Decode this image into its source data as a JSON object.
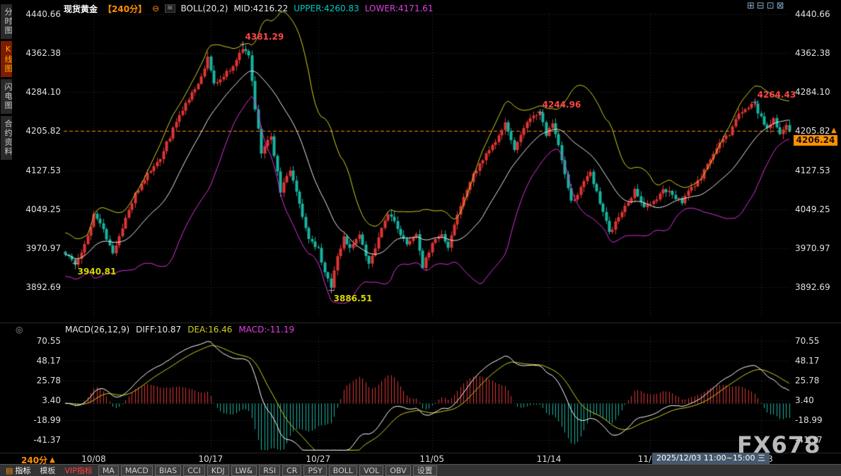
{
  "header": {
    "symbol": "现货黄金",
    "period": "【240分】",
    "indicator": "BOLL(20,2)",
    "mid": "MID:4216.22",
    "upper": "UPPER:4260.83",
    "lower": "LOWER:4171.61"
  },
  "icons": {
    "collapse": "⊖",
    "indicator": "≋",
    "pane_toggle": "◎",
    "indicator_list": "▤"
  },
  "window_icons": [
    {
      "name": "layout-quad-icon",
      "glyph": "⊞"
    },
    {
      "name": "layout-rows-icon",
      "glyph": "⊟"
    },
    {
      "name": "layout-columns-icon",
      "glyph": "⊡"
    },
    {
      "name": "layout-single-icon",
      "glyph": "⊠"
    }
  ],
  "sidebar": {
    "tabs": [
      {
        "label": "分时图",
        "active": false
      },
      {
        "label": "K线图",
        "active": true
      },
      {
        "label": "闪电图",
        "active": false
      },
      {
        "label": "合约资料",
        "active": false
      }
    ]
  },
  "price_badge": "4206.24",
  "price_arrow": "▲",
  "macd_header": {
    "name": "MACD(26,12,9)",
    "diff": "DIFF:10.87",
    "dea": "DEA:16.46",
    "macd": "MACD:-11.19"
  },
  "bottom": {
    "period_label": "240分",
    "period_arrow": "▲",
    "date_highlight": "2025/12/03 11:00~15:00 三",
    "toolbar": [
      {
        "label": "指标",
        "name": "indicators-tab",
        "style": "primary"
      },
      {
        "label": "模板",
        "name": "templates-tab",
        "style": "tab"
      },
      {
        "label": "VIP指标",
        "name": "vip-indicators-tab",
        "style": "vip"
      },
      {
        "label": "MA",
        "name": "ma",
        "style": "box"
      },
      {
        "label": "MACD",
        "name": "macd",
        "style": "box"
      },
      {
        "label": "BIAS",
        "name": "bias",
        "style": "box"
      },
      {
        "label": "CCI",
        "name": "cci",
        "style": "box"
      },
      {
        "label": "KDJ",
        "name": "kdj",
        "style": "box"
      },
      {
        "label": "LW&",
        "name": "lwr",
        "style": "box"
      },
      {
        "label": "RSI",
        "name": "rsi",
        "style": "box"
      },
      {
        "label": "CR",
        "name": "cr",
        "style": "box"
      },
      {
        "label": "PSY",
        "name": "psy",
        "style": "box"
      },
      {
        "label": "BOLL",
        "name": "boll",
        "style": "box"
      },
      {
        "label": "VOL",
        "name": "vol",
        "style": "box"
      },
      {
        "label": "OBV",
        "name": "obv",
        "style": "box"
      },
      {
        "label": "设置",
        "name": "settings",
        "style": "box"
      }
    ]
  },
  "watermark": "FX678",
  "chart_data": {
    "type": "candlestick",
    "symbol": "现货黄金",
    "period": "240分",
    "price_ticks": [
      4440.66,
      4362.38,
      4284.1,
      4205.82,
      4127.53,
      4049.25,
      3970.97,
      3892.69
    ],
    "macd_ticks": [
      70.55,
      48.17,
      25.78,
      3.4,
      -18.99,
      -41.37
    ],
    "x_ticks": [
      {
        "label": "10/08",
        "bar": 9
      },
      {
        "label": "10/17",
        "bar": 46
      },
      {
        "label": "10/27",
        "bar": 80
      },
      {
        "label": "11/05",
        "bar": 116
      },
      {
        "label": "11/14",
        "bar": 153
      },
      {
        "label": "11/24",
        "bar": 185
      },
      {
        "label": "12/03",
        "bar": 220
      }
    ],
    "bars": 230,
    "last_close": 4206.24,
    "dashed_level": 4205.82,
    "boll": {
      "period": 20,
      "width": 2,
      "mid": 4216.22,
      "upper": 4260.83,
      "lower": 4171.61
    },
    "macd": {
      "params": [
        26,
        12,
        9
      ],
      "diff": 10.87,
      "dea": 16.46,
      "macd": -11.19
    },
    "anchors": [
      [
        0,
        3958
      ],
      [
        3,
        3942
      ],
      [
        6,
        3975
      ],
      [
        9,
        4040
      ],
      [
        12,
        4008
      ],
      [
        15,
        3962
      ],
      [
        18,
        4012
      ],
      [
        22,
        4078
      ],
      [
        26,
        4118
      ],
      [
        30,
        4152
      ],
      [
        34,
        4210
      ],
      [
        38,
        4262
      ],
      [
        42,
        4300
      ],
      [
        45,
        4352
      ],
      [
        47,
        4300
      ],
      [
        50,
        4318
      ],
      [
        53,
        4338
      ],
      [
        56,
        4375
      ],
      [
        58,
        4355
      ],
      [
        60,
        4250
      ],
      [
        62,
        4165
      ],
      [
        65,
        4195
      ],
      [
        68,
        4085
      ],
      [
        71,
        4130
      ],
      [
        74,
        4058
      ],
      [
        77,
        3992
      ],
      [
        80,
        3968
      ],
      [
        82,
        3925
      ],
      [
        84,
        3895
      ],
      [
        86,
        3952
      ],
      [
        88,
        3992
      ],
      [
        90,
        3968
      ],
      [
        93,
        4002
      ],
      [
        96,
        3938
      ],
      [
        99,
        3992
      ],
      [
        102,
        4042
      ],
      [
        105,
        4012
      ],
      [
        108,
        3978
      ],
      [
        111,
        3995
      ],
      [
        113,
        3932
      ],
      [
        116,
        3982
      ],
      [
        119,
        4002
      ],
      [
        121,
        3968
      ],
      [
        124,
        4042
      ],
      [
        127,
        4092
      ],
      [
        130,
        4130
      ],
      [
        133,
        4160
      ],
      [
        136,
        4182
      ],
      [
        139,
        4222
      ],
      [
        142,
        4172
      ],
      [
        145,
        4212
      ],
      [
        148,
        4238
      ],
      [
        150,
        4242
      ],
      [
        152,
        4198
      ],
      [
        154,
        4222
      ],
      [
        156,
        4178
      ],
      [
        158,
        4122
      ],
      [
        160,
        4062
      ],
      [
        163,
        4092
      ],
      [
        166,
        4122
      ],
      [
        169,
        4062
      ],
      [
        172,
        4002
      ],
      [
        175,
        4032
      ],
      [
        178,
        4062
      ],
      [
        180,
        4088
      ],
      [
        183,
        4052
      ],
      [
        186,
        4062
      ],
      [
        189,
        4092
      ],
      [
        192,
        4078
      ],
      [
        195,
        4062
      ],
      [
        198,
        4092
      ],
      [
        201,
        4112
      ],
      [
        204,
        4152
      ],
      [
        207,
        4182
      ],
      [
        210,
        4202
      ],
      [
        213,
        4242
      ],
      [
        216,
        4256
      ],
      [
        218,
        4258
      ],
      [
        220,
        4232
      ],
      [
        222,
        4212
      ],
      [
        224,
        4228
      ],
      [
        226,
        4202
      ],
      [
        228,
        4216
      ],
      [
        229,
        4206.24
      ]
    ],
    "extremes": [
      {
        "bar": 3,
        "side": "low",
        "value": 3940.81
      },
      {
        "bar": 56,
        "side": "high",
        "value": 4381.29
      },
      {
        "bar": 84,
        "side": "low",
        "value": 3886.51
      },
      {
        "bar": 150,
        "side": "high",
        "value": 4244.96
      },
      {
        "bar": 218,
        "side": "high",
        "value": 4264.43
      }
    ],
    "annotations": [
      {
        "text": "4381.29",
        "bar": 56,
        "value": 4381.29,
        "color": "#ff4545",
        "pos": "above"
      },
      {
        "text": "3940.81",
        "bar": 3,
        "value": 3940.81,
        "color": "#d6d600",
        "pos": "below"
      },
      {
        "text": "3886.51",
        "bar": 84,
        "value": 3886.51,
        "color": "#d6d600",
        "pos": "below"
      },
      {
        "text": "4244.96",
        "bar": 150,
        "value": 4244.96,
        "color": "#ff4545",
        "pos": "above"
      },
      {
        "text": "4264.43",
        "bar": 218,
        "value": 4264.43,
        "color": "#ff4545",
        "pos": "above"
      }
    ],
    "colors": {
      "background": "#000000",
      "up": "#e03535",
      "down": "#17b3a0",
      "boll_upper": "#cfcf20",
      "boll_mid": "#e8e8e8",
      "boll_lower": "#dd30dd",
      "diff_line": "#ffffff",
      "dea_line": "#cfcf20",
      "grid": "#333333",
      "dashed_line": "#ff8c00",
      "axis_text": "#e0e0e0",
      "badge": "#ff9000"
    }
  }
}
